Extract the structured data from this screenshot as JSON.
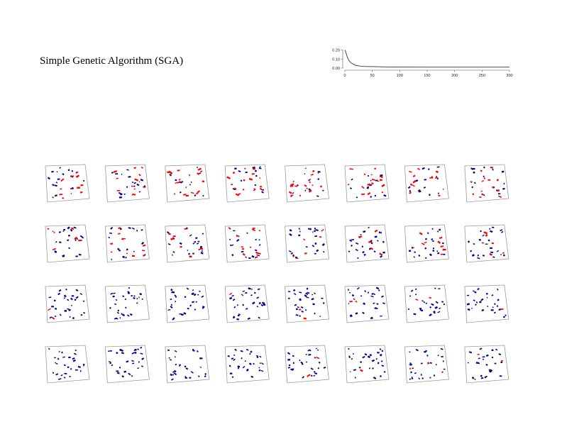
{
  "title": "Simple Genetic Algorithm (SGA)",
  "chart_data": {
    "type": "line",
    "title": "",
    "xlabel": "",
    "ylabel": "",
    "xlim": [
      0,
      300
    ],
    "ylim": [
      0,
      0.22
    ],
    "x_ticks": [
      0,
      50,
      100,
      150,
      200,
      250,
      300
    ],
    "y_ticks": [
      0.0,
      0.1,
      0.2
    ],
    "x_tick_labels": [
      "0",
      "50",
      "100",
      "150",
      "200",
      "250",
      "300"
    ],
    "y_tick_labels": [
      "0.00",
      "0.10",
      "0.20"
    ],
    "series": [
      {
        "x": [
          0,
          1,
          2,
          3,
          4,
          5,
          6,
          8,
          10,
          12,
          15,
          18,
          20,
          25,
          30,
          35,
          40,
          50,
          60,
          70,
          80,
          100,
          150,
          200,
          250,
          300
        ],
        "values": [
          0.2,
          0.19,
          0.17,
          0.15,
          0.13,
          0.115,
          0.1,
          0.08,
          0.065,
          0.055,
          0.045,
          0.035,
          0.03,
          0.025,
          0.02,
          0.018,
          0.017,
          0.016,
          0.015,
          0.013,
          0.012,
          0.011,
          0.01,
          0.01,
          0.01,
          0.01
        ]
      }
    ],
    "grid": false,
    "legend": "none"
  },
  "panels": {
    "rows": 4,
    "columns": 8,
    "dots_per_panel": 30,
    "colors": {
      "outline": "#9a9a9a",
      "good": "#00008b",
      "bad": "#ff0000"
    },
    "red_fraction_by_row": [
      0.55,
      0.25,
      0.06,
      0.02
    ]
  }
}
